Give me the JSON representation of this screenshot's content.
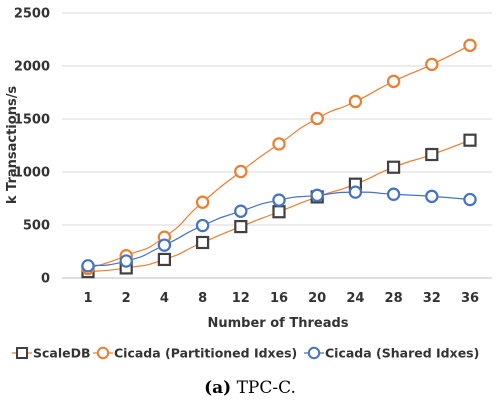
{
  "chart_data": {
    "type": "line",
    "categories": [
      "1",
      "2",
      "4",
      "8",
      "12",
      "16",
      "20",
      "24",
      "28",
      "32",
      "36"
    ],
    "xlabel": "Number of Threads",
    "ylabel": "k Transactions/s",
    "ylim": [
      0,
      2500
    ],
    "yticks": [
      0,
      500,
      1000,
      1500,
      2000,
      2500
    ],
    "grid": true,
    "legend_position": "bottom",
    "series": [
      {
        "name": "ScaleDB",
        "color": "#ED7D31",
        "marker_color": "#404040",
        "marker": "square",
        "values": [
          60,
          95,
          175,
          335,
          485,
          625,
          765,
          885,
          1045,
          1165,
          1300
        ]
      },
      {
        "name": "Cicada (Partitioned Idxes)",
        "color": "#ED7D31",
        "marker_color": "#ED7D31",
        "marker": "circle",
        "values": [
          90,
          210,
          385,
          715,
          1005,
          1265,
          1505,
          1665,
          1855,
          2015,
          2195
        ]
      },
      {
        "name": "Cicada (Shared Idxes)",
        "color": "#4472C4",
        "marker_color": "#4472C4",
        "marker": "circle",
        "values": [
          115,
          160,
          310,
          495,
          630,
          735,
          780,
          810,
          790,
          770,
          740
        ]
      }
    ]
  },
  "caption": {
    "label": "(a)",
    "text": " TPC-C."
  }
}
